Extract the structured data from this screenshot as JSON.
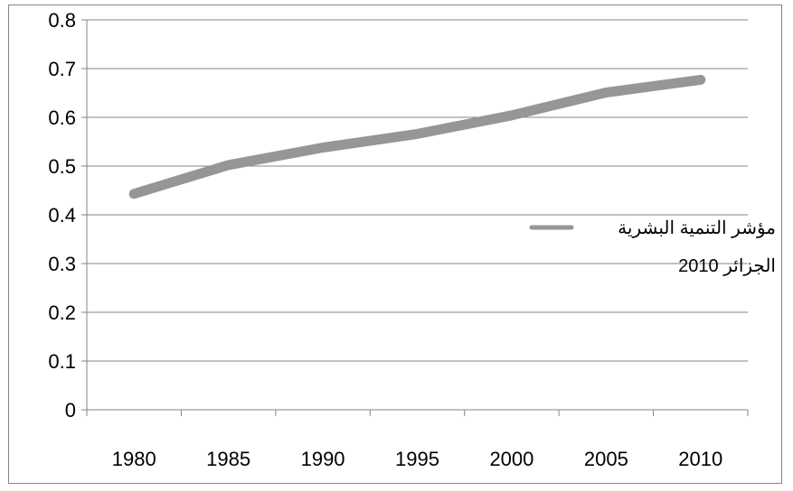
{
  "chart_data": {
    "type": "line",
    "x": [
      "1980",
      "1985",
      "1990",
      "1995",
      "2000",
      "2005",
      "2010"
    ],
    "series": [
      {
        "name": "مؤشر التنمية البشرية الجزائر 2010",
        "values": [
          0.443,
          0.502,
          0.538,
          0.566,
          0.604,
          0.651,
          0.677
        ],
        "color": "#969696"
      }
    ],
    "ylim": [
      0,
      0.8
    ],
    "yticks": [
      "0",
      "0.1",
      "0.2",
      "0.3",
      "0.4",
      "0.5",
      "0.6",
      "0.7",
      "0.8"
    ],
    "grid": true,
    "legend_position": "right",
    "legend_lines": [
      "مؤشر التنمية البشرية",
      "2010 الجزائر"
    ]
  }
}
